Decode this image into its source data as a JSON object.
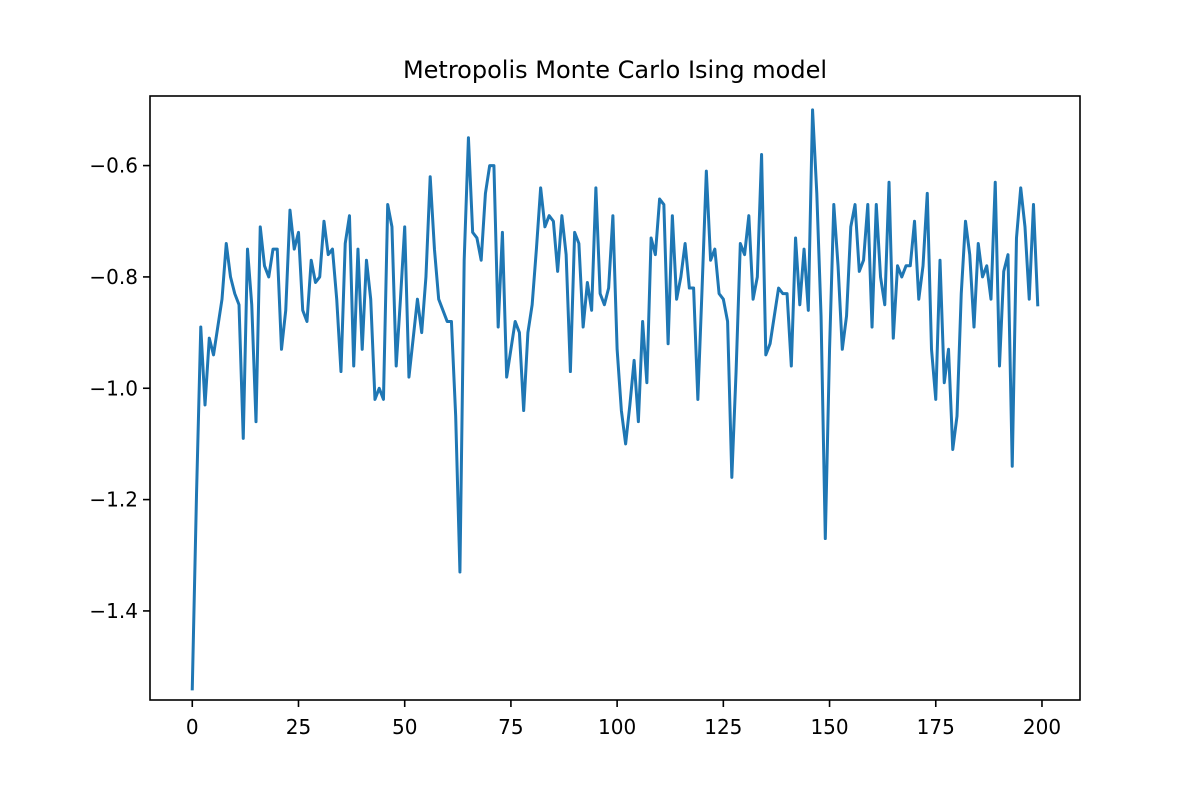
{
  "chart_data": {
    "type": "line",
    "title": "Metropolis Monte Carlo Ising model",
    "xlabel": "",
    "ylabel": "",
    "xlim": [
      -9.95,
      208.95
    ],
    "ylim": [
      -1.56,
      -0.475
    ],
    "xticks": [
      0,
      25,
      50,
      75,
      100,
      125,
      150,
      175,
      200
    ],
    "xtick_labels": [
      "0",
      "25",
      "50",
      "75",
      "100",
      "125",
      "150",
      "175",
      "200"
    ],
    "yticks": [
      -1.4,
      -1.2,
      -1.0,
      -0.8,
      -0.6
    ],
    "ytick_labels": [
      "−1.4",
      "−1.2",
      "−1.0",
      "−0.8",
      "−0.6"
    ],
    "grid": false,
    "line_color": "#1f77b4",
    "series": [
      {
        "x_start": 0,
        "x_step": 1,
        "values": [
          -1.54,
          -1.19,
          -0.89,
          -1.03,
          -0.91,
          -0.94,
          -0.89,
          -0.84,
          -0.74,
          -0.8,
          -0.83,
          -0.85,
          -1.09,
          -0.75,
          -0.85,
          -1.06,
          -0.71,
          -0.78,
          -0.8,
          -0.75,
          -0.75,
          -0.93,
          -0.86,
          -0.68,
          -0.75,
          -0.72,
          -0.86,
          -0.88,
          -0.77,
          -0.81,
          -0.8,
          -0.7,
          -0.76,
          -0.75,
          -0.84,
          -0.97,
          -0.74,
          -0.69,
          -0.96,
          -0.75,
          -0.93,
          -0.77,
          -0.84,
          -1.02,
          -1.0,
          -1.02,
          -0.67,
          -0.71,
          -0.96,
          -0.84,
          -0.71,
          -0.98,
          -0.91,
          -0.84,
          -0.9,
          -0.8,
          -0.62,
          -0.75,
          -0.84,
          -0.86,
          -0.88,
          -0.88,
          -1.05,
          -1.33,
          -0.77,
          -0.55,
          -0.72,
          -0.73,
          -0.77,
          -0.65,
          -0.6,
          -0.6,
          -0.89,
          -0.72,
          -0.98,
          -0.93,
          -0.88,
          -0.9,
          -1.04,
          -0.9,
          -0.85,
          -0.75,
          -0.64,
          -0.71,
          -0.69,
          -0.7,
          -0.79,
          -0.69,
          -0.76,
          -0.97,
          -0.72,
          -0.74,
          -0.89,
          -0.81,
          -0.86,
          -0.64,
          -0.83,
          -0.85,
          -0.82,
          -0.69,
          -0.93,
          -1.04,
          -1.1,
          -1.03,
          -0.95,
          -1.06,
          -0.88,
          -0.99,
          -0.73,
          -0.76,
          -0.66,
          -0.67,
          -0.92,
          -0.69,
          -0.84,
          -0.8,
          -0.74,
          -0.82,
          -0.82,
          -1.02,
          -0.82,
          -0.61,
          -0.77,
          -0.75,
          -0.83,
          -0.84,
          -0.88,
          -1.16,
          -0.97,
          -0.74,
          -0.76,
          -0.69,
          -0.84,
          -0.8,
          -0.58,
          -0.94,
          -0.92,
          -0.87,
          -0.82,
          -0.83,
          -0.83,
          -0.96,
          -0.73,
          -0.85,
          -0.75,
          -0.86,
          -0.5,
          -0.65,
          -0.87,
          -1.27,
          -0.93,
          -0.67,
          -0.78,
          -0.93,
          -0.87,
          -0.71,
          -0.67,
          -0.79,
          -0.77,
          -0.67,
          -0.89,
          -0.67,
          -0.8,
          -0.85,
          -0.63,
          -0.91,
          -0.78,
          -0.8,
          -0.78,
          -0.78,
          -0.7,
          -0.84,
          -0.78,
          -0.65,
          -0.93,
          -1.02,
          -0.77,
          -0.99,
          -0.93,
          -1.11,
          -1.05,
          -0.83,
          -0.7,
          -0.76,
          -0.89,
          -0.74,
          -0.8,
          -0.78,
          -0.84,
          -0.63,
          -0.96,
          -0.79,
          -0.76,
          -1.14,
          -0.73,
          -0.64,
          -0.71,
          -0.84,
          -0.67,
          -0.85
        ]
      }
    ]
  }
}
